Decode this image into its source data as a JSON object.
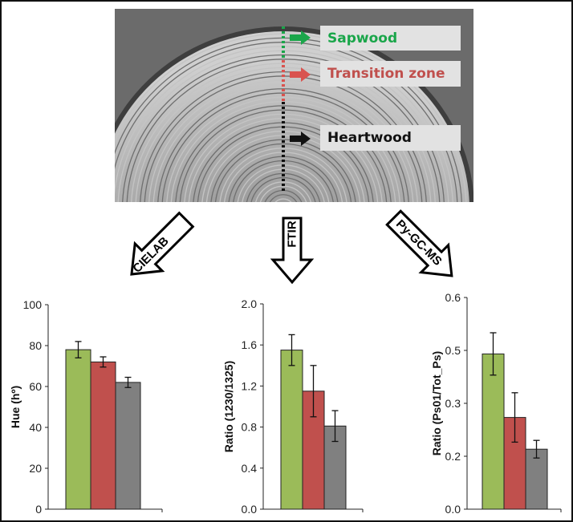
{
  "photo": {
    "zones": [
      {
        "label": "Sapwood",
        "color": "#1aa64a"
      },
      {
        "label": "Transition zone",
        "color": "#c0504d"
      },
      {
        "label": "Heartwood",
        "color": "#111111"
      }
    ]
  },
  "methods": [
    {
      "label": "CIELAB"
    },
    {
      "label": "FTIR"
    },
    {
      "label": "Py-GC-MS"
    }
  ],
  "series_colors": {
    "sapwood": "#9bbb59",
    "transition": "#c0504d",
    "heartwood": "#808080"
  },
  "chart_data": [
    {
      "type": "bar",
      "ylabel": "Hue (hº)",
      "categories": [
        "Sapwood",
        "Transition zone",
        "Heartwood"
      ],
      "values": [
        78,
        72,
        62
      ],
      "errors": [
        4,
        2.5,
        2.5
      ],
      "ylim": [
        0,
        100
      ],
      "yticks": [
        "0",
        "20",
        "40",
        "60",
        "80",
        "100"
      ],
      "grid": false
    },
    {
      "type": "bar",
      "ylabel": "Ratio (1230/1325)",
      "categories": [
        "Sapwood",
        "Transition zone",
        "Heartwood"
      ],
      "values": [
        1.55,
        1.15,
        0.81
      ],
      "errors": [
        0.15,
        0.25,
        0.15
      ],
      "ylim": [
        0,
        2.0
      ],
      "yticks": [
        "0.0",
        "0.4",
        "0.8",
        "1.2",
        "1.6",
        "2.0"
      ],
      "grid": false
    },
    {
      "type": "bar",
      "ylabel": "Ratio (Ps01/Tot_Ps)",
      "categories": [
        "Sapwood",
        "Transition zone",
        "Heartwood"
      ],
      "values": [
        0.44,
        0.26,
        0.17
      ],
      "errors": [
        0.06,
        0.07,
        0.025
      ],
      "ylim": [
        0,
        0.6
      ],
      "yticks": [
        "0.0",
        "0.2",
        "0.3",
        "0.5",
        "0.6"
      ],
      "grid": false
    }
  ]
}
